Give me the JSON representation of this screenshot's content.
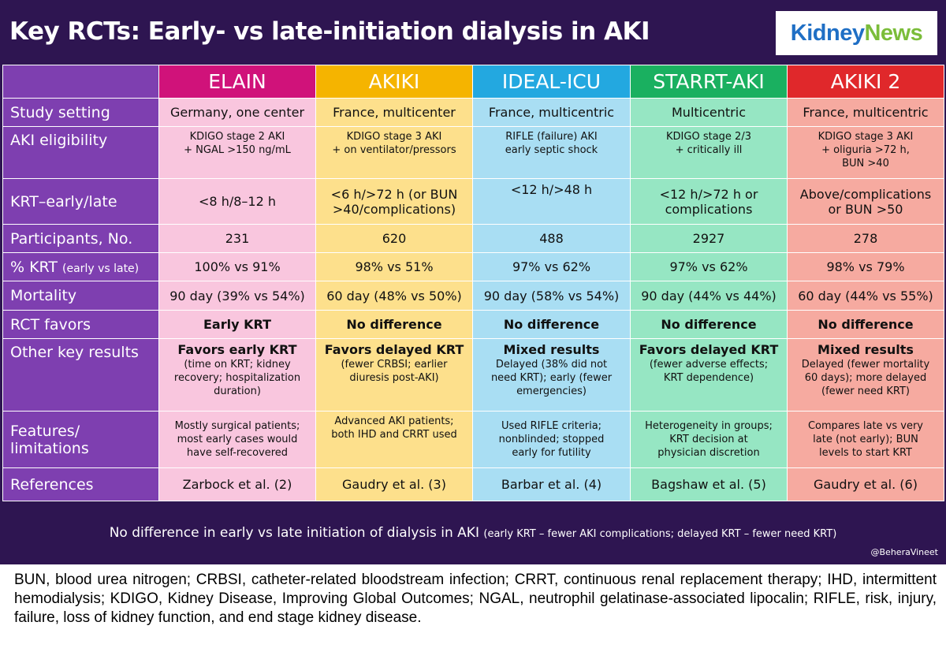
{
  "title": "Key RCTs: Early- vs late-initiation dialysis in AKI",
  "logo": {
    "part1": "Kidney",
    "part2": "News"
  },
  "studies": [
    "ELAIN",
    "AKIKI",
    "IDEAL-ICU",
    "STARRT-AKI",
    "AKIKI 2"
  ],
  "row_labels": {
    "setting": "Study setting",
    "eligibility": "AKI eligibility",
    "krt": "KRT–early/late",
    "participants": "Participants, No.",
    "pct_krt": "% KRT",
    "pct_krt_note": "(early vs late)",
    "mortality": "Mortality",
    "favors": "RCT favors",
    "other": "Other key results",
    "features_1": "Features/",
    "features_2": "limitations",
    "references": "References"
  },
  "setting": [
    "Germany, one center",
    "France, multicenter",
    "France, multicentric",
    "Multicentric",
    "France, multicentric"
  ],
  "eligibility": [
    [
      "KDIGO stage 2 AKI",
      "+ NGAL >150 ng/mL"
    ],
    [
      "KDIGO stage 3 AKI",
      "+ on ventilator/pressors"
    ],
    [
      "RIFLE (failure) AKI",
      "early septic shock"
    ],
    [
      "KDIGO stage 2/3",
      "+ critically ill"
    ],
    [
      "KDIGO stage 3 AKI",
      "+ oliguria >72 h,",
      "BUN >40"
    ]
  ],
  "krt": [
    [
      "<8 h/8–12 h"
    ],
    [
      "<6 h/>72 h (or BUN",
      ">40/complications)"
    ],
    [
      "<12 h/>48 h"
    ],
    [
      "<12 h/>72 h or",
      "complications"
    ],
    [
      "Above/complications",
      "or BUN >50"
    ]
  ],
  "participants": [
    "231",
    "620",
    "488",
    "2927",
    "278"
  ],
  "pct_krt": [
    "100% vs 91%",
    "98% vs 51%",
    "97% vs 62%",
    "97% vs 62%",
    "98% vs 79%"
  ],
  "mortality": [
    "90 day (39% vs 54%)",
    "60 day (48% vs 50%)",
    "90 day (58% vs 54%)",
    "90 day (44% vs 44%)",
    "60 day (44% vs 55%)"
  ],
  "favors": [
    "Early KRT",
    "No difference",
    "No difference",
    "No difference",
    "No difference"
  ],
  "other": [
    {
      "head": "Favors early KRT",
      "lines": [
        "(time on KRT; kidney",
        "recovery; hospitalization",
        "duration)"
      ]
    },
    {
      "head": "Favors delayed KRT",
      "lines": [
        "(fewer CRBSI; earlier",
        "diuresis post-AKI)"
      ]
    },
    {
      "head": "Mixed results",
      "lines": [
        "Delayed (38% did not",
        "need KRT); early (fewer",
        "emergencies)"
      ]
    },
    {
      "head": "Favors delayed KRT",
      "lines": [
        "(fewer adverse effects;",
        "KRT dependence)"
      ]
    },
    {
      "head": "Mixed results",
      "lines": [
        "Delayed (fewer mortality",
        "60 days); more delayed",
        "(fewer need KRT)"
      ]
    }
  ],
  "features": [
    [
      "Mostly surgical patients;",
      "most early cases would",
      "have self-recovered"
    ],
    [
      "Advanced AKI patients;",
      "both IHD and CRRT used"
    ],
    [
      "Used RIFLE criteria;",
      "nonblinded; stopped",
      "early for futility"
    ],
    [
      "Heterogeneity in groups;",
      "KRT decision at",
      "physician discretion"
    ],
    [
      "Compares late vs very",
      "late (not early); BUN",
      "levels to start KRT"
    ]
  ],
  "references": [
    "Zarbock et al. (2)",
    "Gaudry et al. (3)",
    "Barbar et al. (4)",
    "Bagshaw et al. (5)",
    "Gaudry et al. (6)"
  ],
  "summary": {
    "main": "No difference in early vs late initiation of dialysis in AKI",
    "paren": "(early KRT – fewer AKI complications; delayed KRT – fewer need KRT)"
  },
  "handle": "@BeheraVineet",
  "footnote": "BUN, blood urea nitrogen; CRBSI, catheter-related bloodstream infection; CRRT, continuous renal replacement therapy; IHD, intermittent hemodialysis; KDIGO, Kidney Disease, Improving Global Outcomes; NGAL, neutrophil gelatinase-associated lipocalin; RIFLE, risk, injury, failure, loss of kidney function, and end stage kidney disease.",
  "colors": {
    "background": "#2e1551",
    "row_label": "#7e3fb0",
    "study_headers": [
      "#d0127a",
      "#f5b400",
      "#23a8e0",
      "#1ab060",
      "#e0282b"
    ],
    "study_cells": [
      "#f9c6de",
      "#fde08c",
      "#a9def3",
      "#96e6c3",
      "#f6aaa0"
    ]
  }
}
